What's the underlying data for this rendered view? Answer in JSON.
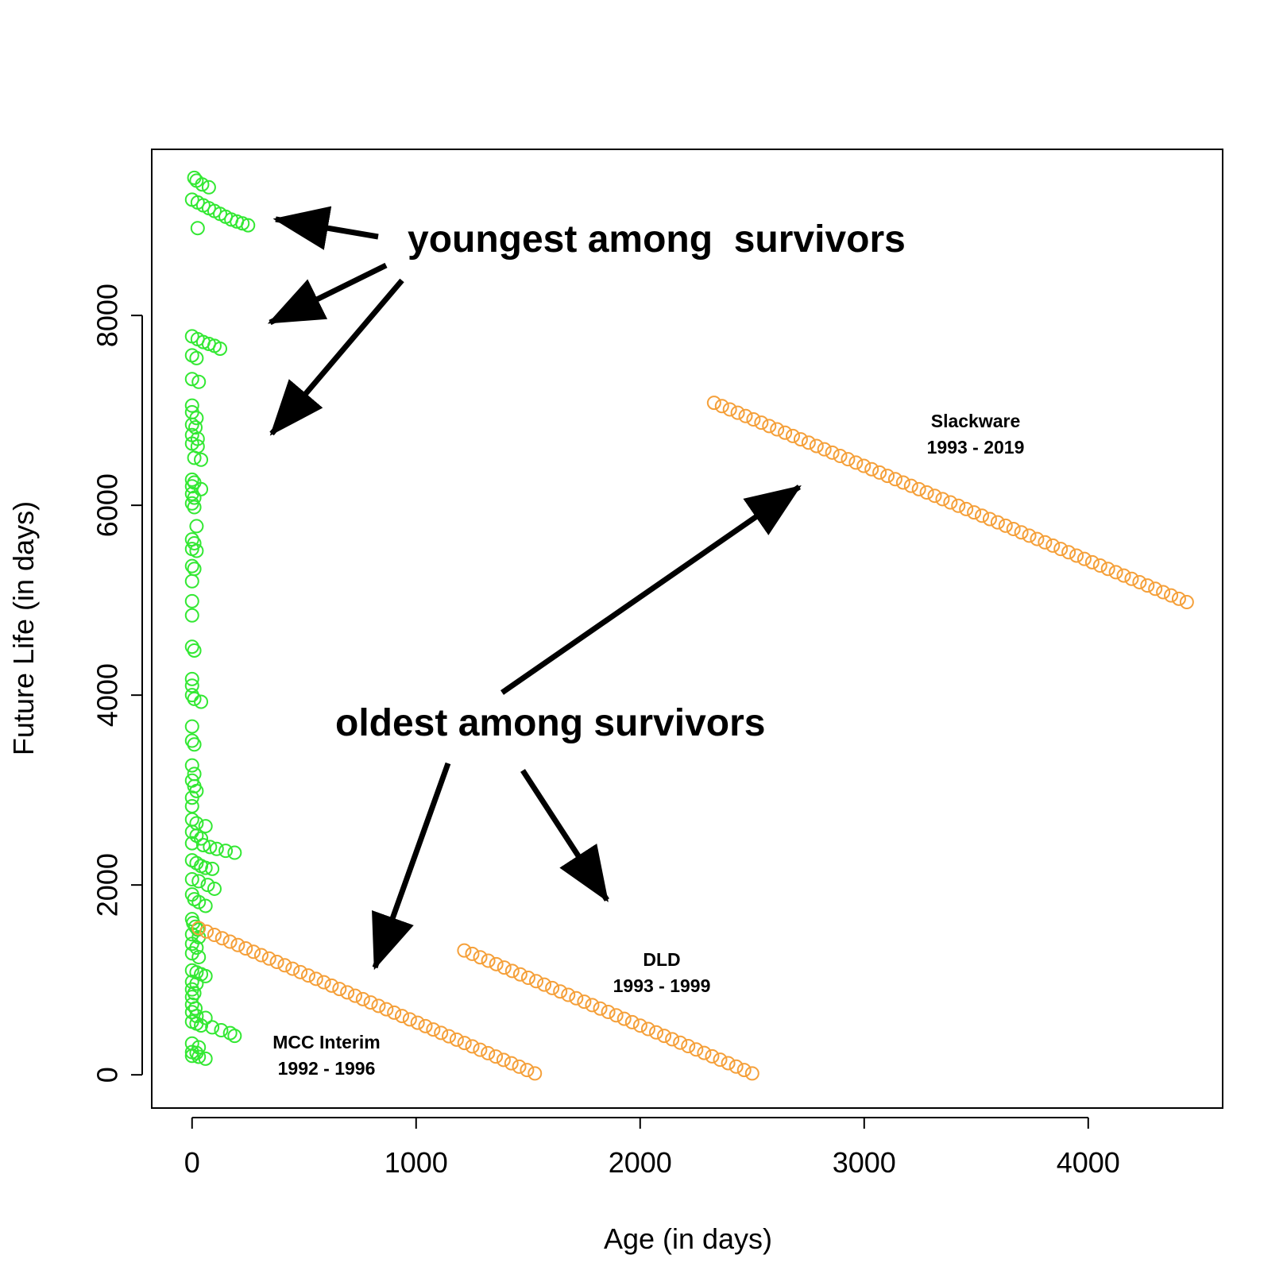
{
  "chart_data": {
    "type": "scatter",
    "xlabel": "Age (in days)",
    "ylabel": "Future Life (in days)",
    "xlim": [
      -180,
      4600
    ],
    "ylim": [
      -350,
      9750
    ],
    "x_ticks": [
      0,
      1000,
      2000,
      3000,
      4000
    ],
    "y_ticks": [
      0,
      2000,
      4000,
      6000,
      8000
    ],
    "grid": false,
    "marker": "open-circle",
    "colors": {
      "youngest": "#33e833",
      "oldest": "#f5a03a",
      "text": "#000000"
    },
    "youngest_points": [
      [
        10,
        9450
      ],
      [
        20,
        9420
      ],
      [
        45,
        9380
      ],
      [
        75,
        9350
      ],
      [
        0,
        9220
      ],
      [
        25,
        9190
      ],
      [
        50,
        9160
      ],
      [
        75,
        9130
      ],
      [
        100,
        9100
      ],
      [
        125,
        9070
      ],
      [
        150,
        9040
      ],
      [
        175,
        9010
      ],
      [
        200,
        8990
      ],
      [
        225,
        8970
      ],
      [
        250,
        8950
      ],
      [
        25,
        8920
      ],
      [
        0,
        7780
      ],
      [
        25,
        7750
      ],
      [
        50,
        7720
      ],
      [
        75,
        7700
      ],
      [
        100,
        7680
      ],
      [
        125,
        7650
      ],
      [
        0,
        7580
      ],
      [
        20,
        7550
      ],
      [
        0,
        7330
      ],
      [
        30,
        7300
      ],
      [
        0,
        7050
      ],
      [
        0,
        6980
      ],
      [
        20,
        6920
      ],
      [
        0,
        6850
      ],
      [
        15,
        6820
      ],
      [
        0,
        6740
      ],
      [
        25,
        6700
      ],
      [
        0,
        6650
      ],
      [
        25,
        6620
      ],
      [
        10,
        6500
      ],
      [
        40,
        6480
      ],
      [
        0,
        6270
      ],
      [
        10,
        6240
      ],
      [
        0,
        6200
      ],
      [
        40,
        6170
      ],
      [
        0,
        6120
      ],
      [
        10,
        6080
      ],
      [
        0,
        6020
      ],
      [
        10,
        5980
      ],
      [
        20,
        5780
      ],
      [
        0,
        5640
      ],
      [
        10,
        5600
      ],
      [
        0,
        5540
      ],
      [
        20,
        5520
      ],
      [
        0,
        5360
      ],
      [
        10,
        5330
      ],
      [
        0,
        5200
      ],
      [
        0,
        4990
      ],
      [
        0,
        4840
      ],
      [
        0,
        4510
      ],
      [
        10,
        4470
      ],
      [
        0,
        4170
      ],
      [
        0,
        4100
      ],
      [
        0,
        4000
      ],
      [
        10,
        3960
      ],
      [
        40,
        3930
      ],
      [
        0,
        3670
      ],
      [
        0,
        3520
      ],
      [
        10,
        3480
      ],
      [
        0,
        3260
      ],
      [
        10,
        3170
      ],
      [
        0,
        3100
      ],
      [
        10,
        3040
      ],
      [
        20,
        2990
      ],
      [
        0,
        2920
      ],
      [
        0,
        2830
      ],
      [
        0,
        2690
      ],
      [
        20,
        2650
      ],
      [
        60,
        2620
      ],
      [
        0,
        2560
      ],
      [
        20,
        2520
      ],
      [
        40,
        2490
      ],
      [
        0,
        2440
      ],
      [
        50,
        2420
      ],
      [
        80,
        2400
      ],
      [
        110,
        2380
      ],
      [
        150,
        2360
      ],
      [
        190,
        2340
      ],
      [
        0,
        2260
      ],
      [
        20,
        2230
      ],
      [
        40,
        2200
      ],
      [
        60,
        2180
      ],
      [
        90,
        2170
      ],
      [
        0,
        2060
      ],
      [
        30,
        2040
      ],
      [
        70,
        2000
      ],
      [
        100,
        1960
      ],
      [
        0,
        1900
      ],
      [
        10,
        1850
      ],
      [
        30,
        1820
      ],
      [
        60,
        1780
      ],
      [
        0,
        1640
      ],
      [
        5,
        1600
      ],
      [
        15,
        1560
      ],
      [
        25,
        1530
      ],
      [
        0,
        1480
      ],
      [
        30,
        1450
      ],
      [
        0,
        1380
      ],
      [
        20,
        1340
      ],
      [
        0,
        1280
      ],
      [
        30,
        1240
      ],
      [
        0,
        1100
      ],
      [
        20,
        1080
      ],
      [
        40,
        1060
      ],
      [
        60,
        1040
      ],
      [
        0,
        980
      ],
      [
        20,
        960
      ],
      [
        0,
        900
      ],
      [
        10,
        860
      ],
      [
        0,
        820
      ],
      [
        0,
        740
      ],
      [
        15,
        700
      ],
      [
        0,
        660
      ],
      [
        20,
        620
      ],
      [
        60,
        600
      ],
      [
        0,
        560
      ],
      [
        20,
        540
      ],
      [
        40,
        520
      ],
      [
        90,
        500
      ],
      [
        130,
        470
      ],
      [
        170,
        440
      ],
      [
        190,
        410
      ],
      [
        0,
        330
      ],
      [
        30,
        290
      ],
      [
        0,
        240
      ],
      [
        20,
        230
      ],
      [
        0,
        200
      ],
      [
        30,
        190
      ],
      [
        60,
        170
      ]
    ],
    "series": [
      {
        "name": "MCC Interim 1992 - 1996",
        "start": [
          30,
          1545
        ],
        "end": [
          1530,
          15
        ]
      },
      {
        "name": "DLD 1993 - 1999",
        "start": [
          1215,
          1310
        ],
        "end": [
          2500,
          15
        ]
      },
      {
        "name": "Slackware 1993 - 2019",
        "start": [
          2330,
          7080
        ],
        "end": [
          4440,
          4980
        ]
      }
    ],
    "annotations": [
      {
        "text": "youngest among  survivors"
      },
      {
        "text": "oldest among survivors"
      },
      {
        "text": "Slackware",
        "text2": "1993 - 2019"
      },
      {
        "text": "DLD",
        "text2": "1993 - 1999"
      },
      {
        "text": "MCC Interim",
        "text2": "1992 - 1996"
      }
    ]
  }
}
